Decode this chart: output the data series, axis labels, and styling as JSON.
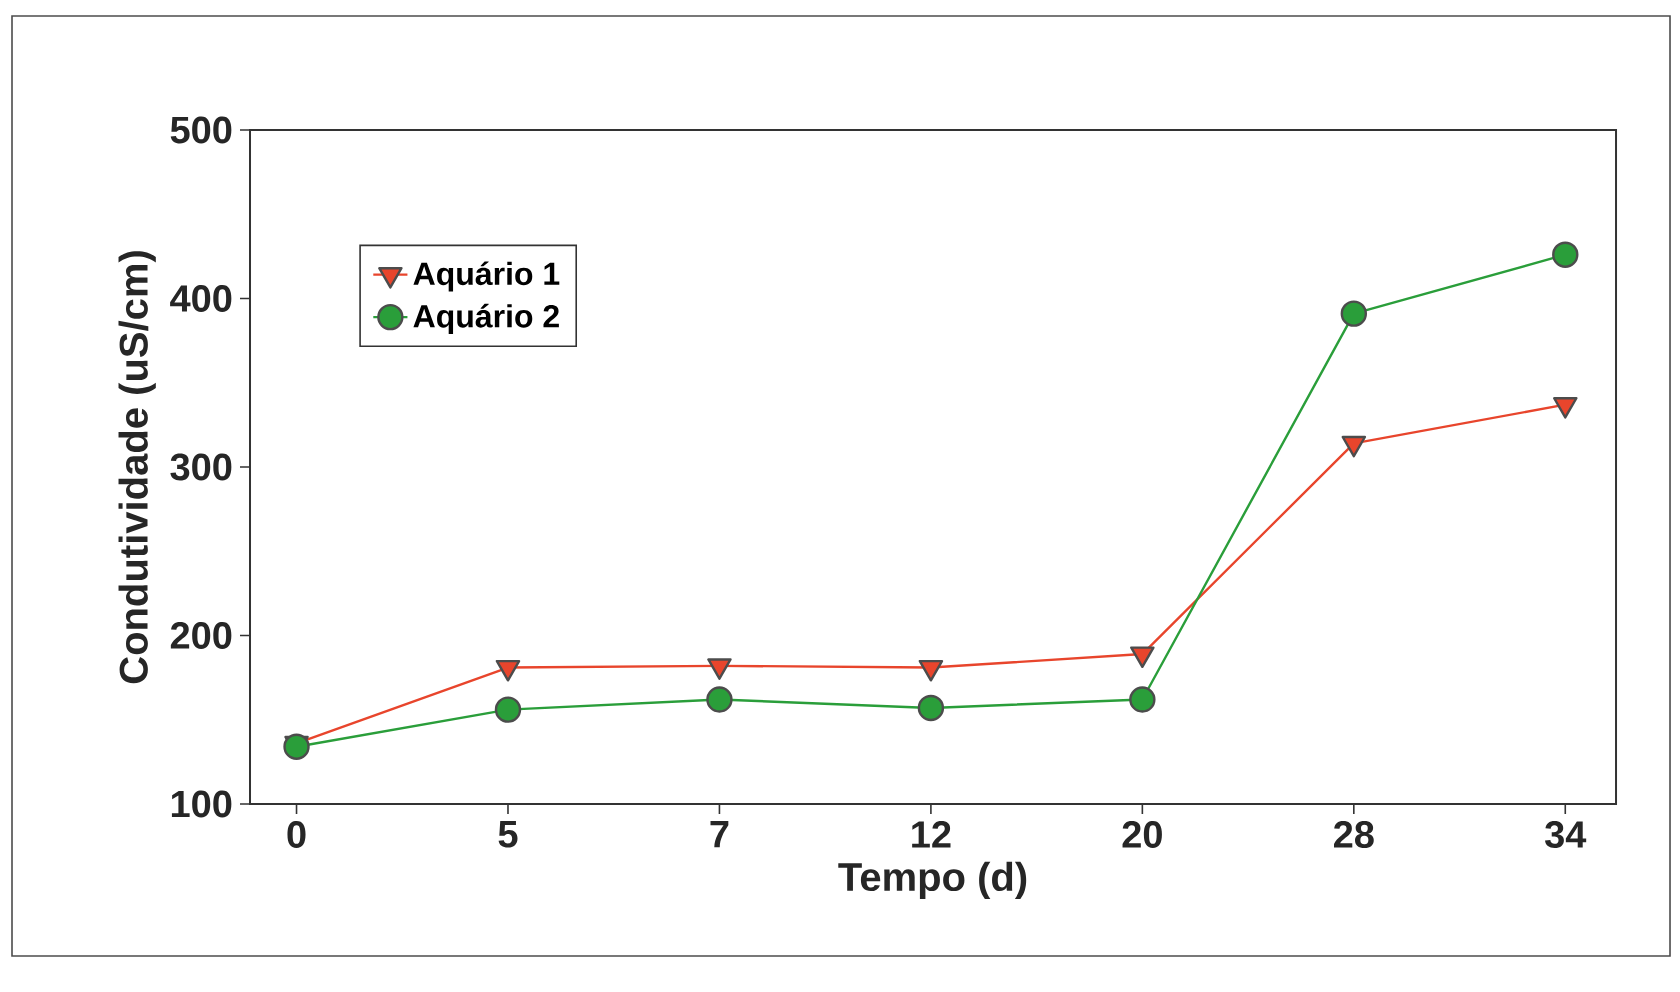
{
  "chart_data": {
    "type": "line",
    "xlabel": "Tempo (d)",
    "ylabel": "Condutividade (uS/cm)",
    "categories": [
      "0",
      "5",
      "7",
      "12",
      "20",
      "28",
      "34"
    ],
    "series": [
      {
        "name": "Aquário 1",
        "color": "#e8452c",
        "marker": "triangle",
        "values": [
          136,
          181,
          182,
          181,
          189,
          314,
          337
        ]
      },
      {
        "name": "Aquário 2",
        "color": "#2a9e3a",
        "marker": "circle",
        "values": [
          134,
          156,
          162,
          157,
          162,
          391,
          426
        ]
      }
    ],
    "ylim": [
      100,
      500
    ],
    "yticks": [
      100,
      200,
      300,
      400,
      500
    ],
    "grid": false,
    "legend": "top left",
    "line_style": "solid"
  }
}
